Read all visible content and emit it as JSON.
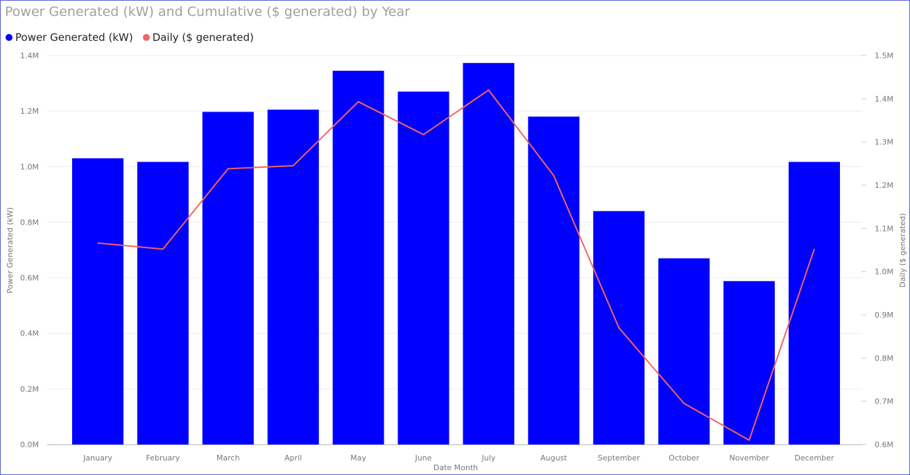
{
  "title": "Power Generated (kW) and Cumulative ($ generated) by Year",
  "legend": {
    "items": [
      {
        "label": "Power Generated (kW)",
        "color": "#0000ff"
      },
      {
        "label": "Daily ($ generated)",
        "color": "#f26464"
      }
    ]
  },
  "colors": {
    "bar": "#0000ff",
    "line": "#f26464",
    "grid": "#ececec",
    "text": "#777777"
  },
  "chart_data": {
    "type": "bar",
    "categories": [
      "January",
      "February",
      "March",
      "April",
      "May",
      "June",
      "July",
      "August",
      "September",
      "October",
      "November",
      "December"
    ],
    "series": [
      {
        "name": "Power Generated (kW)",
        "type": "bar",
        "axis": "left",
        "values": [
          1030000,
          1017000,
          1197000,
          1205000,
          1345000,
          1270000,
          1373000,
          1180000,
          840000,
          670000,
          588000,
          1017000
        ]
      },
      {
        "name": "Daily ($ generated)",
        "type": "line",
        "axis": "right",
        "values": [
          1066000,
          1052000,
          1238000,
          1245000,
          1393000,
          1317000,
          1420000,
          1222000,
          870000,
          695000,
          610000,
          1052000
        ]
      }
    ],
    "xlabel": "Date Month",
    "ylabel": "Power Generated (kW)",
    "y2label": "Daily ($ generated)",
    "ylim": [
      0,
      1400000
    ],
    "y2lim": [
      600000,
      1500000
    ],
    "yticks": [
      "0.0M",
      "0.2M",
      "0.4M",
      "0.6M",
      "0.8M",
      "1.0M",
      "1.2M",
      "1.4M"
    ],
    "y2ticks": [
      "0.6M",
      "0.7M",
      "0.8M",
      "0.9M",
      "1.0M",
      "1.1M",
      "1.2M",
      "1.3M",
      "1.4M",
      "1.5M"
    ],
    "grid": true,
    "legend_position": "top-left"
  }
}
